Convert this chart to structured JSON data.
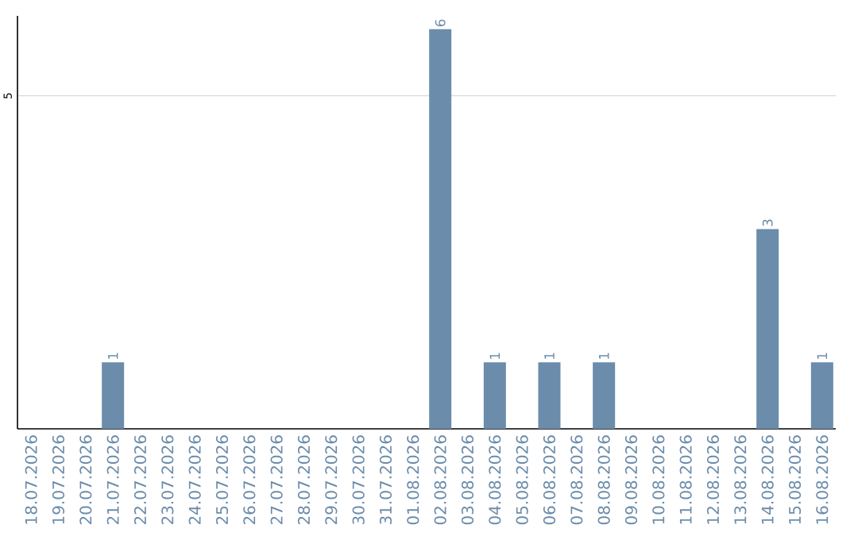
{
  "chart_data": {
    "type": "bar",
    "categories": [
      "18.07.2026",
      "19.07.2026",
      "20.07.2026",
      "21.07.2026",
      "22.07.2026",
      "23.07.2026",
      "24.07.2026",
      "25.07.2026",
      "26.07.2026",
      "27.07.2026",
      "28.07.2026",
      "29.07.2026",
      "30.07.2026",
      "31.07.2026",
      "01.08.2026",
      "02.08.2026",
      "03.08.2026",
      "04.08.2026",
      "05.08.2026",
      "06.08.2026",
      "07.08.2026",
      "08.08.2026",
      "09.08.2026",
      "10.08.2026",
      "11.08.2026",
      "12.08.2026",
      "13.08.2026",
      "14.08.2026",
      "15.08.2026",
      "16.08.2026"
    ],
    "values": [
      0,
      0,
      0,
      1,
      0,
      0,
      0,
      0,
      0,
      0,
      0,
      0,
      0,
      0,
      0,
      6,
      0,
      1,
      0,
      1,
      0,
      1,
      0,
      0,
      0,
      0,
      0,
      3,
      0,
      1
    ],
    "value_labels": [
      null,
      null,
      null,
      "1",
      null,
      null,
      null,
      null,
      null,
      null,
      null,
      null,
      null,
      null,
      null,
      "6",
      null,
      "1",
      null,
      "1",
      null,
      "1",
      null,
      null,
      null,
      null,
      null,
      "3",
      null,
      "1"
    ],
    "color": "#6b8cab",
    "ylim": [
      0,
      6.2
    ],
    "yticks": [
      5
    ],
    "grid": "y"
  }
}
